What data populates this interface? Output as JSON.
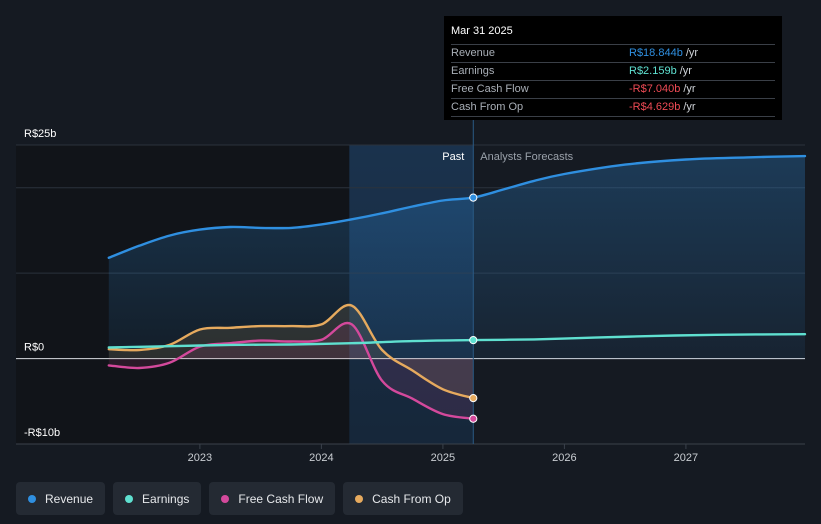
{
  "chart_data": {
    "type": "line",
    "currency": "R$",
    "y_unit": "billions",
    "ylim": [
      -10,
      25
    ],
    "y_ticks": [
      {
        "value": 25,
        "label": "R$25b"
      },
      {
        "value": 0,
        "label": "R$0"
      },
      {
        "value": -10,
        "label": "-R$10b"
      }
    ],
    "x_ticks": [
      {
        "value": 2023.0,
        "label": "2023"
      },
      {
        "value": 2024.0,
        "label": "2024"
      },
      {
        "value": 2025.0,
        "label": "2025"
      },
      {
        "value": 2026.0,
        "label": "2026"
      },
      {
        "value": 2027.0,
        "label": "2027"
      }
    ],
    "xlim": [
      2021.75,
      2027.98
    ],
    "shaded_range": [
      2024.23,
      2025.25
    ],
    "divider_x": 2025.25,
    "past_label": "Past",
    "forecast_label": "Analysts Forecasts",
    "series": [
      {
        "name": "Revenue",
        "color": "#2f8fe0",
        "fill": true,
        "points": [
          [
            2022.25,
            11.8
          ],
          [
            2022.5,
            13.2
          ],
          [
            2022.75,
            14.4
          ],
          [
            2023.0,
            15.1
          ],
          [
            2023.25,
            15.4
          ],
          [
            2023.5,
            15.3
          ],
          [
            2023.75,
            15.3
          ],
          [
            2024.0,
            15.7
          ],
          [
            2024.25,
            16.3
          ],
          [
            2024.5,
            17.0
          ],
          [
            2024.75,
            17.8
          ],
          [
            2025.0,
            18.5
          ],
          [
            2025.25,
            18.844
          ]
        ],
        "forecast": [
          [
            2025.25,
            18.844
          ],
          [
            2025.5,
            19.8
          ],
          [
            2025.75,
            20.8
          ],
          [
            2026.0,
            21.6
          ],
          [
            2026.5,
            22.7
          ],
          [
            2027.0,
            23.3
          ],
          [
            2027.5,
            23.55
          ],
          [
            2027.98,
            23.7
          ]
        ]
      },
      {
        "name": "Earnings",
        "color": "#5fe0d0",
        "fill": false,
        "points": [
          [
            2022.25,
            1.3
          ],
          [
            2022.75,
            1.45
          ],
          [
            2023.25,
            1.6
          ],
          [
            2023.75,
            1.65
          ],
          [
            2024.25,
            1.8
          ],
          [
            2024.75,
            2.05
          ],
          [
            2025.25,
            2.159
          ]
        ],
        "forecast": [
          [
            2025.25,
            2.159
          ],
          [
            2025.75,
            2.25
          ],
          [
            2026.25,
            2.45
          ],
          [
            2026.75,
            2.65
          ],
          [
            2027.25,
            2.78
          ],
          [
            2027.98,
            2.85
          ]
        ]
      },
      {
        "name": "Free Cash Flow",
        "color": "#d4499c",
        "fill": false,
        "points": [
          [
            2022.25,
            -0.8
          ],
          [
            2022.5,
            -1.1
          ],
          [
            2022.75,
            -0.5
          ],
          [
            2023.0,
            1.4
          ],
          [
            2023.25,
            1.8
          ],
          [
            2023.5,
            2.1
          ],
          [
            2023.75,
            2.0
          ],
          [
            2024.0,
            2.2
          ],
          [
            2024.25,
            4.0
          ],
          [
            2024.5,
            -2.6
          ],
          [
            2024.75,
            -4.7
          ],
          [
            2025.0,
            -6.5
          ],
          [
            2025.25,
            -7.04
          ]
        ],
        "forecast": []
      },
      {
        "name": "Cash From Op",
        "color": "#e6aa5e",
        "fill": false,
        "points": [
          [
            2022.25,
            1.1
          ],
          [
            2022.5,
            1.0
          ],
          [
            2022.75,
            1.6
          ],
          [
            2023.0,
            3.4
          ],
          [
            2023.25,
            3.6
          ],
          [
            2023.5,
            3.8
          ],
          [
            2023.75,
            3.8
          ],
          [
            2024.0,
            4.0
          ],
          [
            2024.25,
            6.2
          ],
          [
            2024.5,
            1.0
          ],
          [
            2024.75,
            -1.4
          ],
          [
            2025.0,
            -3.6
          ],
          [
            2025.25,
            -4.629
          ]
        ],
        "forecast": []
      }
    ]
  },
  "tooltip": {
    "date": "Mar 31 2025",
    "rows": [
      {
        "label": "Revenue",
        "value": "R$18.844b",
        "unit": "/yr",
        "color": "#2f8fe0"
      },
      {
        "label": "Earnings",
        "value": "R$2.159b",
        "unit": "/yr",
        "color": "#5fe0d0"
      },
      {
        "label": "Free Cash Flow",
        "value": "-R$7.040b",
        "unit": "/yr",
        "color": "#f04b55"
      },
      {
        "label": "Cash From Op",
        "value": "-R$4.629b",
        "unit": "/yr",
        "color": "#f04b55"
      }
    ]
  },
  "legend": [
    {
      "label": "Revenue",
      "color": "#2f8fe0"
    },
    {
      "label": "Earnings",
      "color": "#5fe0d0"
    },
    {
      "label": "Free Cash Flow",
      "color": "#d4499c"
    },
    {
      "label": "Cash From Op",
      "color": "#e6aa5e"
    }
  ]
}
